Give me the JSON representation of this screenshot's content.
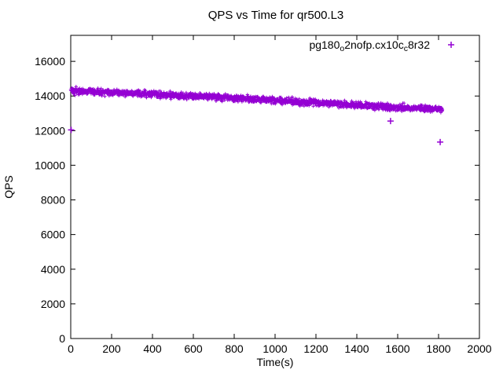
{
  "chart_data": {
    "type": "scatter",
    "title": "QPS vs Time for qr500.L3",
    "xlabel": "Time(s)",
    "ylabel": "QPS",
    "xlim": [
      0,
      2000
    ],
    "ylim": [
      0,
      17500
    ],
    "xticks": [
      0,
      200,
      400,
      600,
      800,
      1000,
      1200,
      1400,
      1600,
      1800,
      2000
    ],
    "yticks": [
      0,
      2000,
      4000,
      6000,
      8000,
      10000,
      12000,
      14000,
      16000
    ],
    "grid": false,
    "legend_position": "top-right-inside",
    "background_color": "#ffffff",
    "axis_color": "#000000",
    "series": [
      {
        "name": "pg180_o2nofp.cx10c_8r32",
        "label_segments": [
          {
            "text": "pg180",
            "sub": false
          },
          {
            "text": "o",
            "sub": true
          },
          {
            "text": "2nofp.cx10c",
            "sub": false
          },
          {
            "text": "c",
            "sub": true
          },
          {
            "text": "8r32",
            "sub": false
          }
        ],
        "color": "#9400D3",
        "marker": "plus",
        "duration_s": 1819,
        "sample_interval_s": 1,
        "trend": [
          [
            0,
            14300
          ],
          [
            200,
            14200
          ],
          [
            400,
            14100
          ],
          [
            600,
            14000
          ],
          [
            800,
            13880
          ],
          [
            1000,
            13740
          ],
          [
            1200,
            13620
          ],
          [
            1400,
            13480
          ],
          [
            1600,
            13330
          ],
          [
            1819,
            13230
          ]
        ],
        "noise_qps": 95,
        "outliers": [
          [
            2,
            12040
          ],
          [
            1565,
            12550
          ],
          [
            1808,
            11340
          ]
        ]
      }
    ]
  }
}
